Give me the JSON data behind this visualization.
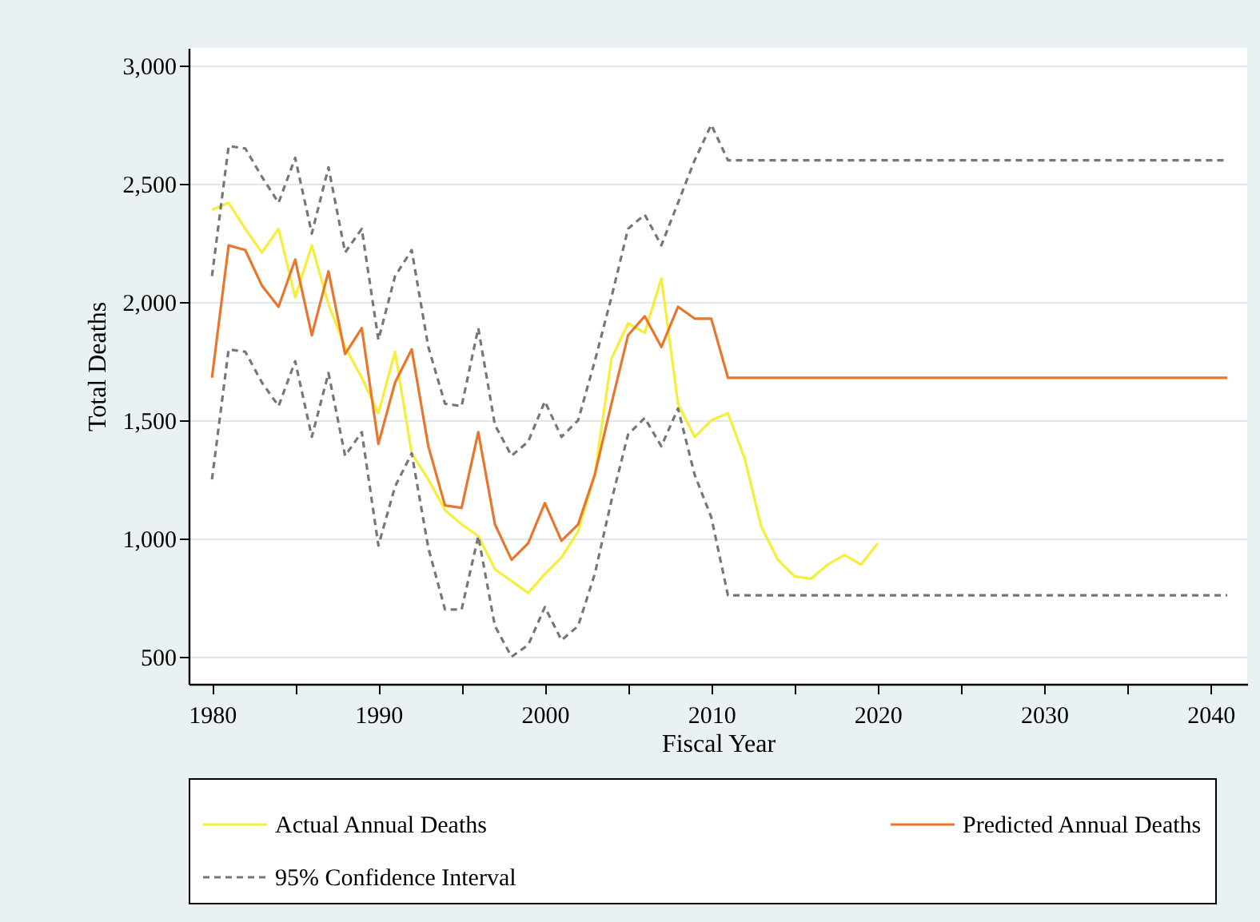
{
  "chart_data": {
    "type": "line",
    "xlabel": "Fiscal Year",
    "ylabel": "Total Deaths",
    "xlim": [
      1978.6,
      2042.2
    ],
    "xticks": [
      1980,
      {
        "value": 1985,
        "label": null
      },
      1990,
      {
        "value": 1995,
        "label": null
      },
      2000,
      {
        "value": 2005,
        "label": null
      },
      2010,
      {
        "value": 2015,
        "label": null
      },
      2020,
      {
        "value": 2025,
        "label": null
      },
      2030,
      {
        "value": 2035,
        "label": null
      },
      2040
    ],
    "ylim": [
      385,
      3075
    ],
    "yticks": [
      {
        "value": 500,
        "label": "500"
      },
      {
        "value": 1000,
        "label": "1,000"
      },
      {
        "value": 1500,
        "label": "1,500"
      },
      {
        "value": 2000,
        "label": "2,000"
      },
      {
        "value": 2500,
        "label": "2,500"
      },
      {
        "value": 3000,
        "label": "3,000"
      }
    ],
    "grid": "y",
    "legend": "bottom",
    "marker": "none",
    "series": [
      {
        "name": "Actual Annual Deaths",
        "color": "#f5ef3a",
        "line_style": "solid",
        "x": [
          1980,
          1981,
          1982,
          1983,
          1984,
          1985,
          1986,
          1987,
          1988,
          1989,
          1990,
          1991,
          1992,
          1993,
          1994,
          1995,
          1996,
          1997,
          1998,
          1999,
          2000,
          2001,
          2002,
          2003,
          2004,
          2005,
          2006,
          2007,
          2008,
          2009,
          2010,
          2011,
          2012,
          2013,
          2014,
          2015,
          2016,
          2017,
          2018,
          2019,
          2020
        ],
        "values": [
          2390,
          2420,
          2310,
          2210,
          2310,
          2020,
          2240,
          1990,
          1810,
          1680,
          1530,
          1790,
          1360,
          1250,
          1120,
          1060,
          1010,
          870,
          820,
          770,
          850,
          920,
          1030,
          1270,
          1760,
          1910,
          1870,
          2100,
          1570,
          1430,
          1500,
          1530,
          1340,
          1050,
          910,
          840,
          830,
          890,
          930,
          890,
          980
        ]
      },
      {
        "name": "Predicted Annual Deaths",
        "color": "#e8772e",
        "line_style": "solid",
        "x": [
          1980,
          1981,
          1982,
          1983,
          1984,
          1985,
          1986,
          1987,
          1988,
          1989,
          1990,
          1991,
          1992,
          1993,
          1994,
          1995,
          1996,
          1997,
          1998,
          1999,
          2000,
          2001,
          2002,
          2003,
          2004,
          2005,
          2006,
          2007,
          2008,
          2009,
          2010,
          2011,
          2041
        ],
        "values": [
          1680,
          2240,
          2220,
          2070,
          1980,
          2180,
          1860,
          2130,
          1780,
          1890,
          1400,
          1660,
          1800,
          1390,
          1140,
          1130,
          1450,
          1060,
          910,
          980,
          1150,
          990,
          1060,
          1270,
          1570,
          1860,
          1940,
          1810,
          1980,
          1930,
          1930,
          1680,
          1680
        ]
      },
      {
        "name": "95% Confidence Interval",
        "color": "#777777",
        "line_style": "dashed",
        "x": [
          1980,
          1981,
          1982,
          1983,
          1984,
          1985,
          1986,
          1987,
          1988,
          1989,
          1990,
          1991,
          1992,
          1993,
          1994,
          1995,
          1996,
          1997,
          1998,
          1999,
          2000,
          2001,
          2002,
          2003,
          2004,
          2005,
          2006,
          2007,
          2008,
          2009,
          2010,
          2011,
          2041
        ],
        "values": [
          2110,
          2660,
          2650,
          2530,
          2420,
          2610,
          2290,
          2570,
          2210,
          2310,
          1840,
          2110,
          2220,
          1810,
          1570,
          1560,
          1890,
          1480,
          1350,
          1410,
          1580,
          1430,
          1500,
          1750,
          2020,
          2310,
          2370,
          2240,
          2420,
          2600,
          2750,
          2600,
          2600
        ]
      },
      {
        "color": "#777777",
        "line_style": "dashed",
        "x": [
          1980,
          1981,
          1982,
          1983,
          1984,
          1985,
          1986,
          1987,
          1988,
          1989,
          1990,
          1991,
          1992,
          1993,
          1994,
          1995,
          1996,
          1997,
          1998,
          1999,
          2000,
          2001,
          2002,
          2003,
          2004,
          2005,
          2006,
          2007,
          2008,
          2009,
          2010,
          2011,
          2041
        ],
        "values": [
          1250,
          1800,
          1790,
          1660,
          1560,
          1750,
          1430,
          1700,
          1350,
          1450,
          970,
          1220,
          1360,
          960,
          700,
          700,
          1010,
          630,
          500,
          550,
          710,
          570,
          630,
          850,
          1160,
          1440,
          1510,
          1390,
          1550,
          1270,
          1090,
          760,
          760
        ]
      }
    ]
  }
}
